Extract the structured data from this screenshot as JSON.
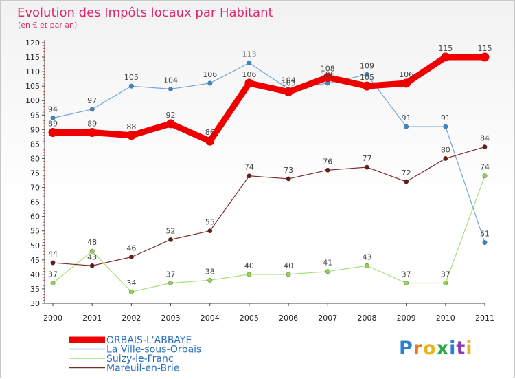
{
  "chart_data": {
    "type": "line",
    "title": "Evolution des Impôts locaux par Habitant",
    "subtitle": "(en € et par an)",
    "x": [
      "2000",
      "2001",
      "2002",
      "2003",
      "2004",
      "2005",
      "2006",
      "2007",
      "2008",
      "2009",
      "2010",
      "2011"
    ],
    "ylim": [
      30,
      120
    ],
    "yticks": [
      30,
      35,
      40,
      45,
      50,
      55,
      60,
      65,
      70,
      75,
      80,
      85,
      90,
      95,
      100,
      105,
      110,
      115,
      120
    ],
    "grid": false,
    "legend_position": "bottom-left",
    "series": [
      {
        "name": "ORBAIS-L'ABBAYE",
        "color": "#ee0000",
        "point_color": "#ee0000",
        "emphasis": true,
        "values": [
          89,
          89,
          88,
          92,
          86,
          106,
          103,
          108,
          105,
          106,
          115,
          115
        ]
      },
      {
        "name": "La Ville-sous-Orbais",
        "color": "#6fa8d8",
        "point_color": "#3a86c8",
        "emphasis": false,
        "values": [
          94,
          97,
          105,
          104,
          106,
          113,
          104,
          106,
          109,
          91,
          91,
          51
        ]
      },
      {
        "name": "Suizy-le-Franc",
        "color": "#a6e07a",
        "point_color": "#8ed44f",
        "emphasis": false,
        "values": [
          37,
          48,
          34,
          37,
          38,
          40,
          40,
          41,
          43,
          37,
          37,
          74
        ]
      },
      {
        "name": "Mareuil-en-Brie",
        "color": "#7a2a2a",
        "point_color": "#6a1818",
        "emphasis": false,
        "values": [
          44,
          43,
          46,
          52,
          55,
          74,
          73,
          76,
          77,
          72,
          80,
          84
        ]
      }
    ]
  },
  "logo": {
    "letters": [
      "P",
      "r",
      "o",
      "x",
      "i",
      "t",
      "i"
    ],
    "colors": [
      "#2a7fd4",
      "#e87a1e",
      "#e8b41e",
      "#2aa84a",
      "#2a7fd4",
      "#8a3ab4",
      "#e8b41e"
    ]
  }
}
